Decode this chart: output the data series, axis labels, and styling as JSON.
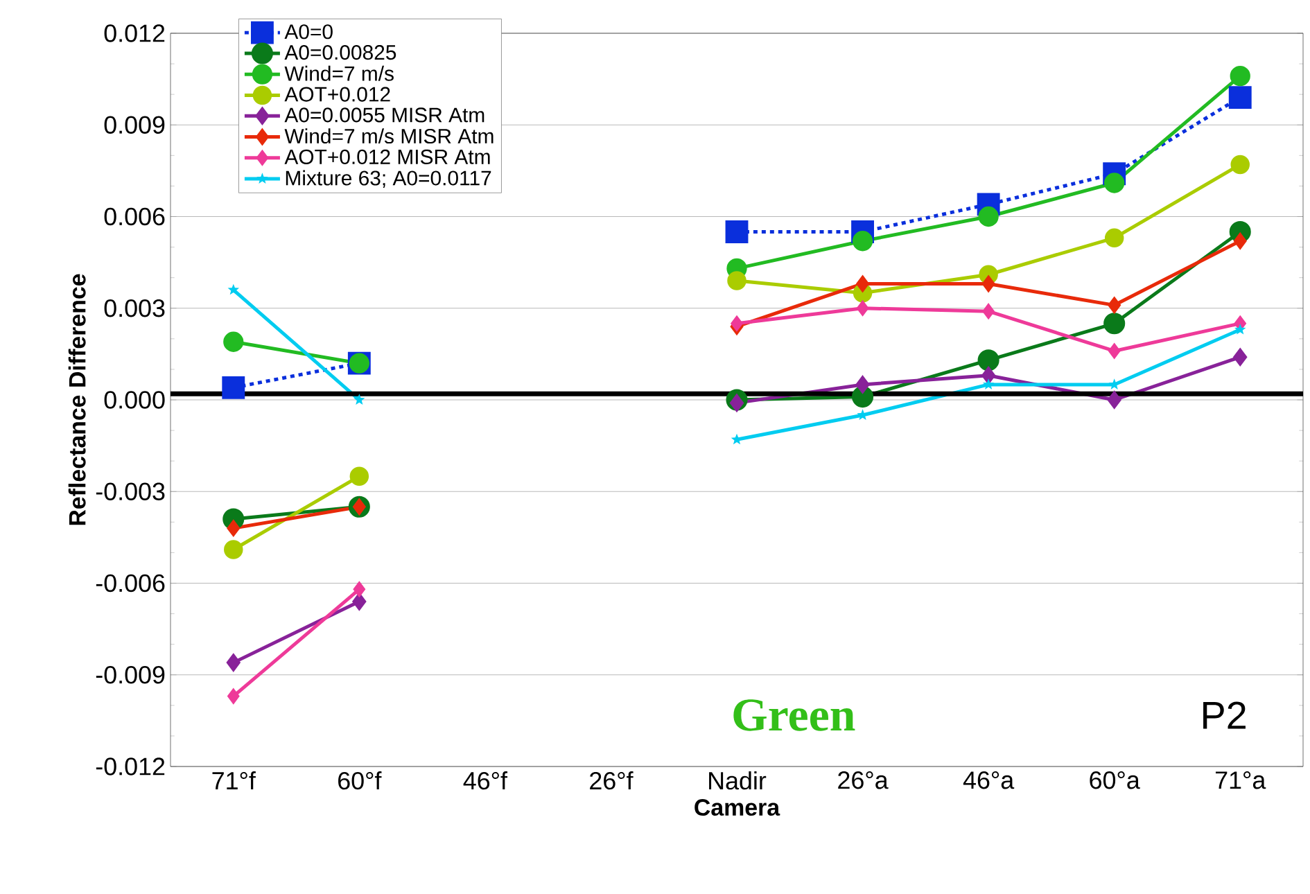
{
  "chart_data": {
    "type": "line",
    "xlabel": "Camera",
    "ylabel": "Reflectance Difference",
    "categories": [
      "71°f",
      "60°f",
      "46°f",
      "26°f",
      "Nadir",
      "26°a",
      "46°a",
      "60°a",
      "71°a"
    ],
    "series": [
      {
        "name": "A0=0",
        "color": "#0a2fdc",
        "marker": "square",
        "line_style": "dashed",
        "values": [
          0.0004,
          0.0012,
          null,
          null,
          0.0055,
          0.0055,
          0.0064,
          0.0074,
          0.0099
        ]
      },
      {
        "name": "A0=0.00825",
        "color": "#0a7a1a",
        "marker": "circle",
        "values": [
          -0.0039,
          -0.0035,
          null,
          null,
          0.0,
          0.0001,
          0.0013,
          0.0025,
          0.0055
        ]
      },
      {
        "name": "Wind=7 m/s",
        "color": "#22bb22",
        "marker": "circle",
        "values": [
          0.0019,
          0.0012,
          null,
          null,
          0.0043,
          0.0052,
          0.006,
          0.0071,
          0.0106
        ]
      },
      {
        "name": "AOT+0.012",
        "color": "#aacc00",
        "marker": "circle",
        "values": [
          -0.0049,
          -0.0025,
          null,
          null,
          0.0039,
          0.0035,
          0.0041,
          0.0053,
          0.0077
        ]
      },
      {
        "name": "A0=0.0055 MISR Atm",
        "color": "#882299",
        "marker": "diamond",
        "values": [
          -0.0086,
          -0.0066,
          null,
          null,
          -0.0001,
          0.0005,
          0.0008,
          0.0,
          0.0014
        ]
      },
      {
        "name": "Wind=7 m/s MISR Atm",
        "color": "#e82a0a",
        "marker": "diamond",
        "values": [
          -0.0042,
          -0.0035,
          null,
          null,
          0.0024,
          0.0038,
          0.0038,
          0.0031,
          0.0052
        ]
      },
      {
        "name": "AOT+0.012 MISR Atm",
        "color": "#ee3a99",
        "marker": "diamond",
        "values": [
          -0.0097,
          -0.0062,
          null,
          null,
          0.0025,
          0.003,
          0.0029,
          0.0016,
          0.0025
        ]
      },
      {
        "name": "Mixture 63; A0=0.0117",
        "color": "#00ccf0",
        "marker": "star",
        "values": [
          0.0036,
          0.0,
          null,
          null,
          -0.0013,
          -0.0005,
          0.0005,
          0.0005,
          0.0023
        ]
      }
    ],
    "ylim": [
      -0.012,
      0.012
    ],
    "yticks": [
      -0.012,
      -0.009,
      -0.006,
      -0.003,
      {
        "value": 0,
        "label": "0.000"
      },
      0.003,
      0.006,
      0.009,
      0.012
    ],
    "grid": "y",
    "legend": "top left",
    "line_style": "solid",
    "ref_lines": [
      {
        "axis": "y",
        "value": 0.0002,
        "color": "#000000"
      }
    ],
    "annotations": [
      "Green",
      "P2"
    ]
  }
}
